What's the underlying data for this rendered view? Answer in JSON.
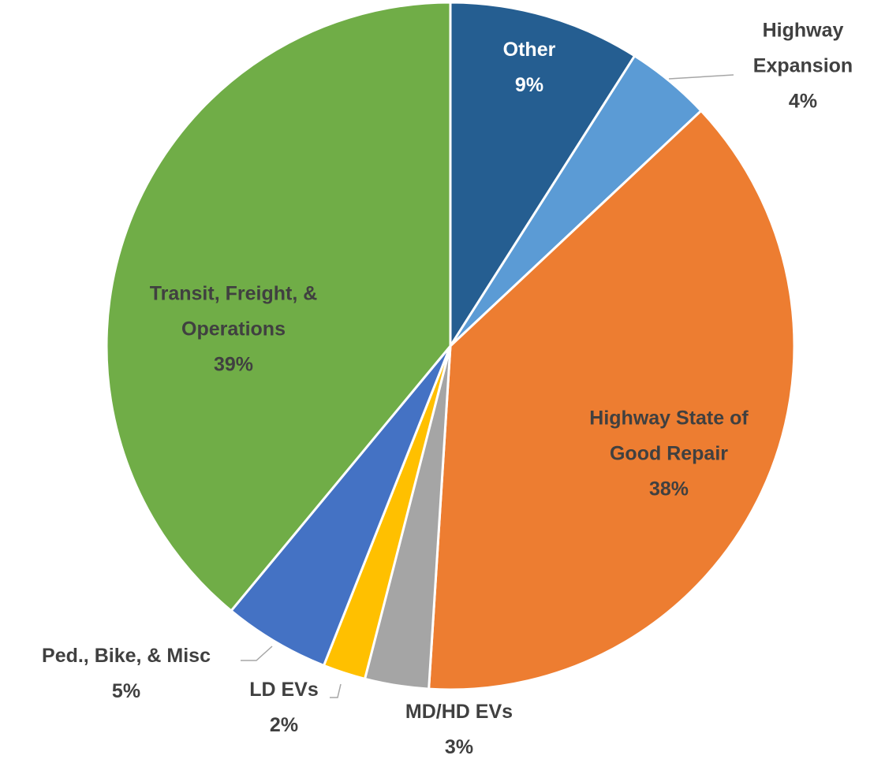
{
  "chart_data": {
    "type": "pie",
    "categories": [
      "Other",
      "Highway Expansion",
      "Highway State of Good Repair",
      "MD/HD EVs",
      "LD EVs",
      "Ped., Bike, & Misc",
      "Transit, Freight, & Operations"
    ],
    "values": [
      9,
      4,
      38,
      3,
      2,
      5,
      39
    ],
    "value_labels": [
      "9%",
      "4%",
      "38%",
      "3%",
      "2%",
      "5%",
      "39%"
    ],
    "colors": [
      "#255e91",
      "#5b9bd5",
      "#ed7d31",
      "#a5a5a5",
      "#ffc000",
      "#4472c4",
      "#70ad47"
    ]
  }
}
